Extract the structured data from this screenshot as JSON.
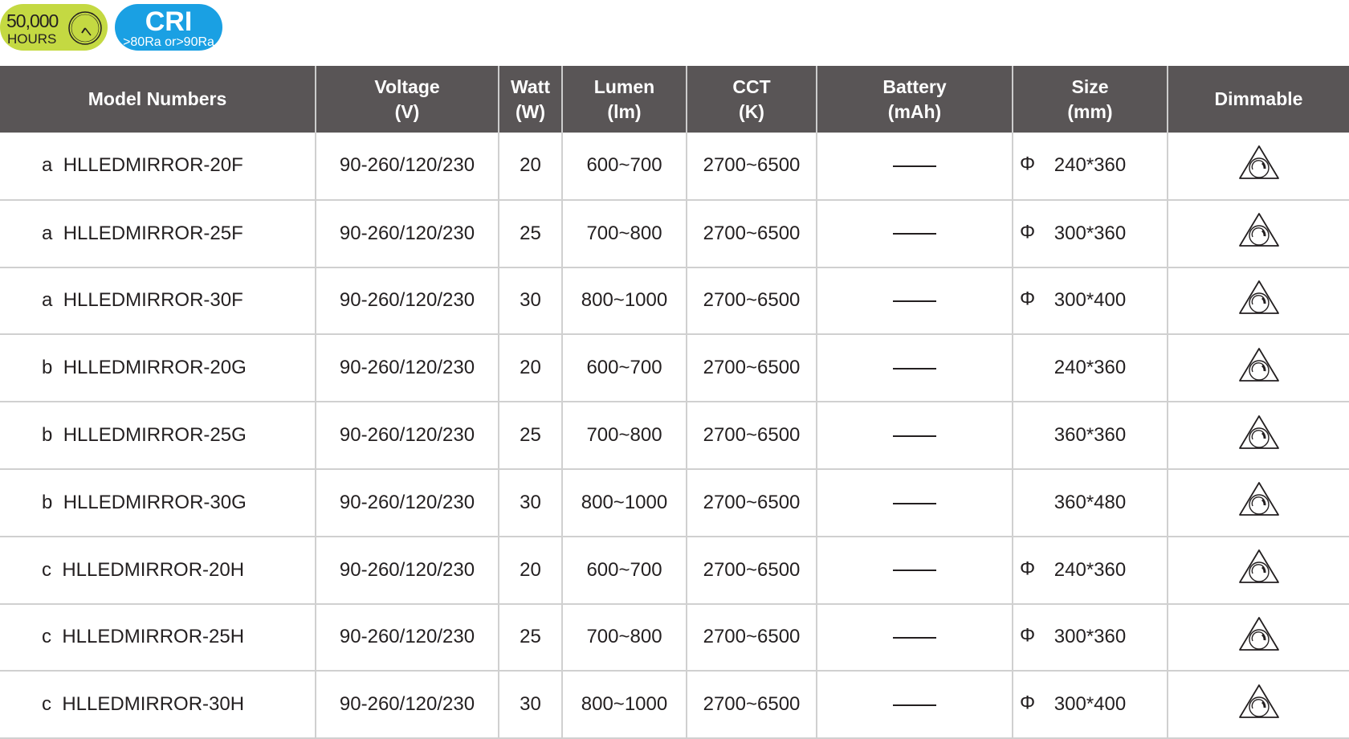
{
  "badges": {
    "hours": {
      "value": "50,000",
      "label": "HOURS",
      "color": "#c4d942"
    },
    "cri": {
      "title": "CRI",
      "subtitle": ">80Ra or>90Ra",
      "color": "#1aa0e3"
    }
  },
  "table": {
    "headers": [
      [
        "Model Numbers",
        ""
      ],
      [
        "Voltage",
        "(V)"
      ],
      [
        "Watt",
        "(W)"
      ],
      [
        "Lumen",
        "(lm)"
      ],
      [
        "CCT",
        "(K)"
      ],
      [
        "Battery",
        "(mAh)"
      ],
      [
        "Size",
        "(mm)"
      ],
      [
        "Dimmable",
        ""
      ]
    ],
    "rows": [
      {
        "type": "a",
        "model": "HLLEDMIRROR-20F",
        "voltage": "90-260/120/230",
        "watt": "20",
        "lumen": "600~700",
        "cct": "2700~6500",
        "battery": "——",
        "phi": "Φ",
        "size": "240*360",
        "dimmable": "dimmable-icon"
      },
      {
        "type": "a",
        "model": "HLLEDMIRROR-25F",
        "voltage": "90-260/120/230",
        "watt": "25",
        "lumen": "700~800",
        "cct": "2700~6500",
        "battery": "——",
        "phi": "Φ",
        "size": "300*360",
        "dimmable": "dimmable-icon"
      },
      {
        "type": "a",
        "model": "HLLEDMIRROR-30F",
        "voltage": "90-260/120/230",
        "watt": "30",
        "lumen": "800~1000",
        "cct": "2700~6500",
        "battery": "——",
        "phi": "Φ",
        "size": "300*400",
        "dimmable": "dimmable-icon"
      },
      {
        "type": "b",
        "model": "HLLEDMIRROR-20G",
        "voltage": "90-260/120/230",
        "watt": "20",
        "lumen": "600~700",
        "cct": "2700~6500",
        "battery": "——",
        "phi": "",
        "size": "240*360",
        "dimmable": "dimmable-icon"
      },
      {
        "type": "b",
        "model": "HLLEDMIRROR-25G",
        "voltage": "90-260/120/230",
        "watt": "25",
        "lumen": "700~800",
        "cct": "2700~6500",
        "battery": "——",
        "phi": "",
        "size": "360*360",
        "dimmable": "dimmable-icon"
      },
      {
        "type": "b",
        "model": "HLLEDMIRROR-30G",
        "voltage": "90-260/120/230",
        "watt": "30",
        "lumen": "800~1000",
        "cct": "2700~6500",
        "battery": "——",
        "phi": "",
        "size": "360*480",
        "dimmable": "dimmable-icon"
      },
      {
        "type": "c",
        "model": "HLLEDMIRROR-20H",
        "voltage": "90-260/120/230",
        "watt": "20",
        "lumen": "600~700",
        "cct": "2700~6500",
        "battery": "——",
        "phi": "Φ",
        "size": "240*360",
        "dimmable": "dimmable-icon"
      },
      {
        "type": "c",
        "model": "HLLEDMIRROR-25H",
        "voltage": "90-260/120/230",
        "watt": "25",
        "lumen": "700~800",
        "cct": "2700~6500",
        "battery": "——",
        "phi": "Φ",
        "size": "300*360",
        "dimmable": "dimmable-icon"
      },
      {
        "type": "c",
        "model": "HLLEDMIRROR-30H",
        "voltage": "90-260/120/230",
        "watt": "30",
        "lumen": "800~1000",
        "cct": "2700~6500",
        "battery": "——",
        "phi": "Φ",
        "size": "300*400",
        "dimmable": "dimmable-icon"
      }
    ]
  }
}
